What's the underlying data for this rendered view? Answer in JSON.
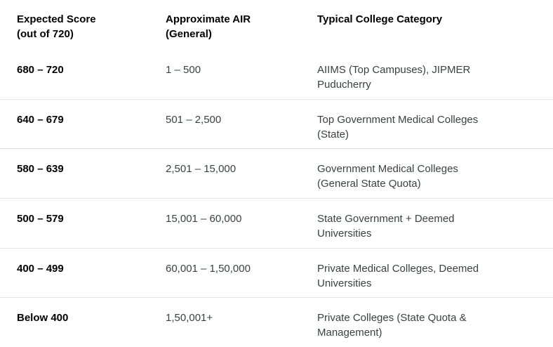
{
  "colors": {
    "background": "#ffffff",
    "divider": "#dfe4ee",
    "header_text": "#000000",
    "score_text": "#000000",
    "body_text": "#3c4043"
  },
  "table": {
    "headers": [
      {
        "lines": [
          "Expected Score",
          "(out of 720)"
        ]
      },
      {
        "lines": [
          "Approximate AIR",
          "(General)"
        ]
      },
      {
        "lines": [
          "Typical College Category"
        ]
      }
    ],
    "rows": [
      {
        "score": "680 – 720",
        "air": "1 – 500",
        "category_lines": [
          "AIIMS (Top Campuses), JIPMER",
          "Puducherry"
        ]
      },
      {
        "score": "640 – 679",
        "air": "501 – 2,500",
        "category_lines": [
          "Top Government Medical Colleges",
          "(State)"
        ]
      },
      {
        "score": "580 – 639",
        "air": "2,501 – 15,000",
        "category_lines": [
          "Government Medical Colleges",
          "(General State Quota)"
        ]
      },
      {
        "score": "500 – 579",
        "air": "15,001 – 60,000",
        "category_lines": [
          "State Government + Deemed",
          "Universities"
        ]
      },
      {
        "score": "400 – 499",
        "air": "60,001 – 1,50,000",
        "category_lines": [
          "Private Medical Colleges, Deemed",
          "Universities"
        ]
      },
      {
        "score": "Below 400",
        "air": "1,50,001+",
        "category_lines": [
          "Private Colleges (State Quota &",
          "Management)"
        ]
      }
    ]
  }
}
